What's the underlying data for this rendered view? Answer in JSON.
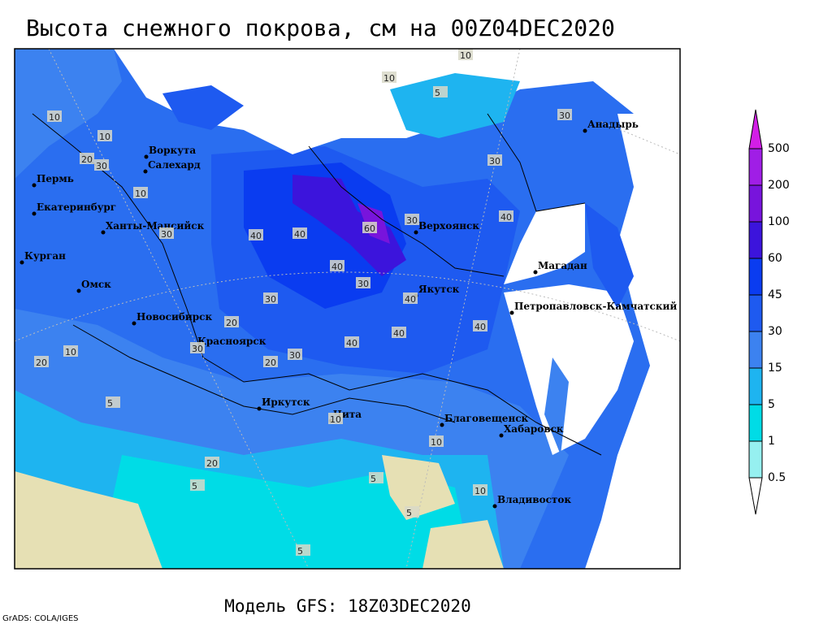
{
  "header": {
    "title": "Высота снежного покрова, см на 00Z04DEC2020"
  },
  "footer": {
    "model": "Модель GFS: 18Z03DEC2020",
    "credit": "GrADS: COLA/IGES"
  },
  "cities": [
    "Воркута",
    "Салехард",
    "Пермь",
    "Екатеринбург",
    "Ханты-Мансийск",
    "Курган",
    "Омск",
    "Новосибирск",
    "Красноярск",
    "Иркутск",
    "Чита",
    "Благовещенск",
    "Хабаровск",
    "Владивосток",
    "Якутск",
    "Верхоянск",
    "Магадан",
    "Петропавловск-Камчатский",
    "Анадырь"
  ],
  "contour_labels": [
    10,
    10,
    5,
    10,
    30,
    10,
    20,
    30,
    10,
    40,
    30,
    40,
    60,
    30,
    40,
    30,
    30,
    40,
    40,
    30,
    40,
    20,
    30,
    20,
    10,
    20,
    5,
    10,
    5,
    10,
    5,
    20,
    5,
    10,
    40,
    30,
    40,
    5
  ],
  "colorbar": {
    "levels": [
      500,
      200,
      100,
      60,
      45,
      30,
      15,
      5,
      1,
      0.5
    ],
    "colors": [
      "#d21ee6",
      "#a01ee6",
      "#7814dc",
      "#3c14dc",
      "#0a3cf0",
      "#1e5af0",
      "#3c82f0",
      "#1eb4f0",
      "#00dce6",
      "#96f0f0",
      "#ffffff"
    ]
  }
}
